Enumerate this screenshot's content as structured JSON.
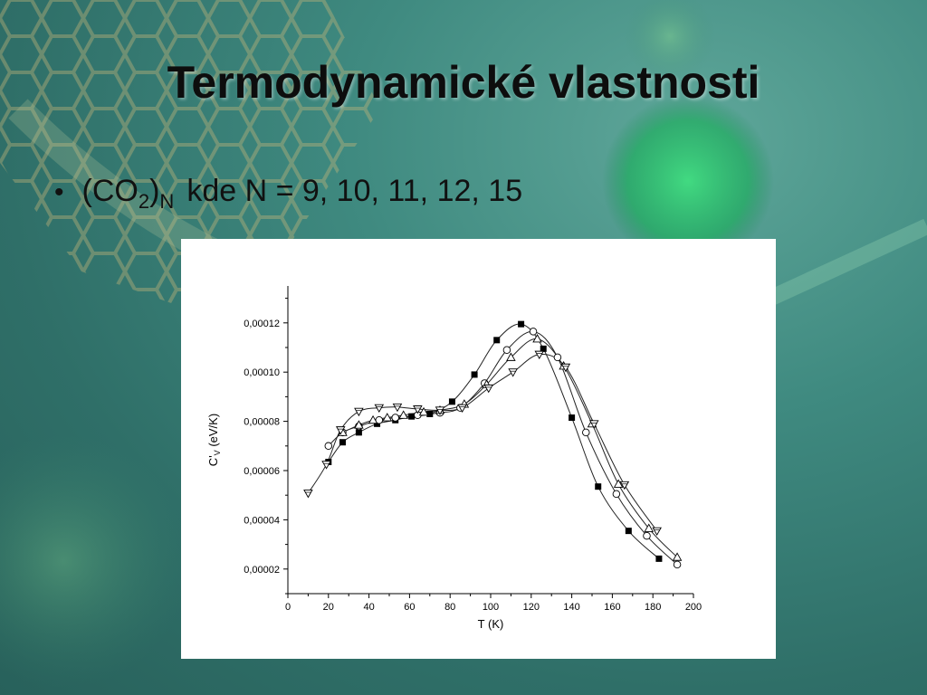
{
  "slide": {
    "title": "Termodynamické vlastnosti",
    "bullet": {
      "symbol": "•",
      "formula_base": "(CO",
      "formula_sub": "2",
      "formula_close": ")",
      "formula_index": "N",
      "text": "kde N = 9, 10, 11, 12, 15"
    }
  },
  "chart_data": {
    "type": "scatter",
    "xlabel": "T (K)",
    "ylabel": "C'V (eV/K)",
    "ylabel_main": "C'",
    "ylabel_sub": "V",
    "ylabel_unit": " (eV/K)",
    "xlim": [
      0,
      200
    ],
    "ylim": [
      1e-05,
      0.000135
    ],
    "xticks": [
      0,
      20,
      40,
      60,
      80,
      100,
      120,
      140,
      160,
      180,
      200
    ],
    "xtick_labels": [
      "0",
      "20",
      "40",
      "60",
      "80",
      "100",
      "120",
      "140",
      "160",
      "180",
      "200"
    ],
    "yticks": [
      2e-05,
      4e-05,
      6e-05,
      8e-05,
      0.0001,
      0.00012
    ],
    "ytick_labels": [
      "0,00002",
      "0,00004",
      "0,00006",
      "0,00008",
      "0,00010",
      "0,00012"
    ],
    "grid": false,
    "series": [
      {
        "marker": "filled-square",
        "x": [
          20,
          27,
          35,
          44,
          53,
          61,
          70,
          81,
          92,
          103,
          115,
          126,
          140,
          153,
          168,
          183
        ],
        "y": [
          6.35e-05,
          7.15e-05,
          7.55e-05,
          7.9e-05,
          8.05e-05,
          8.2e-05,
          8.3e-05,
          8.8e-05,
          9.9e-05,
          0.000113,
          0.0001195,
          0.0001095,
          8.15e-05,
          5.35e-05,
          3.55e-05,
          2.42e-05
        ]
      },
      {
        "marker": "open-circle",
        "x": [
          20,
          27,
          35,
          45,
          53,
          64,
          75,
          85,
          97,
          108,
          121,
          133,
          147,
          162,
          177,
          192
        ],
        "y": [
          7e-05,
          7.55e-05,
          7.8e-05,
          8.05e-05,
          8.15e-05,
          8.25e-05,
          8.35e-05,
          8.55e-05,
          9.55e-05,
          0.000109,
          0.0001165,
          0.000106,
          7.55e-05,
          5.05e-05,
          3.35e-05,
          2.18e-05
        ]
      },
      {
        "marker": "open-triangle-up",
        "x": [
          27,
          35,
          42,
          49,
          57,
          67,
          75,
          87,
          98,
          110,
          123,
          136,
          150,
          163,
          178,
          192
        ],
        "y": [
          7.55e-05,
          7.85e-05,
          8.05e-05,
          8.15e-05,
          8.25e-05,
          8.38e-05,
          8.45e-05,
          8.7e-05,
          9.5e-05,
          0.000106,
          0.0001135,
          0.0001025,
          7.9e-05,
          5.45e-05,
          3.65e-05,
          2.48e-05
        ]
      },
      {
        "marker": "open-triangle-down",
        "x": [
          10,
          19,
          26,
          35,
          45,
          54,
          64,
          75,
          86,
          99,
          111,
          124,
          137,
          151,
          166,
          182
        ],
        "y": [
          5.08e-05,
          6.25e-05,
          7.65e-05,
          8.4e-05,
          8.55e-05,
          8.58e-05,
          8.5e-05,
          8.45e-05,
          8.55e-05,
          9.35e-05,
          0.0001,
          0.0001072,
          0.000102,
          7.9e-05,
          5.42e-05,
          3.55e-05
        ]
      }
    ]
  }
}
